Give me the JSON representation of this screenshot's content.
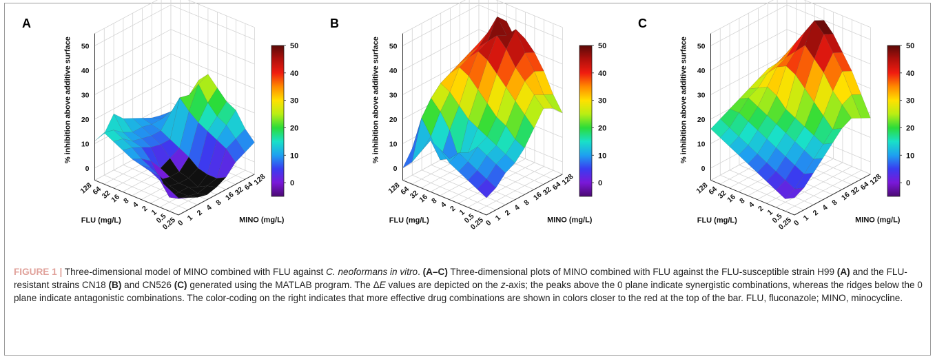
{
  "figure": {
    "panels": [
      {
        "letter": "A"
      },
      {
        "letter": "B"
      },
      {
        "letter": "C"
      }
    ],
    "caption": {
      "label": "FIGURE 1 |",
      "segments": [
        {
          "t": " Three-dimensional model of MINO combined with FLU against ",
          "s": "n"
        },
        {
          "t": "C. neoformans in vitro",
          "s": "i"
        },
        {
          "t": ". ",
          "s": "n"
        },
        {
          "t": "(A–C)",
          "s": "b"
        },
        {
          "t": " Three-dimensional plots of MINO combined with FLU against the FLU-susceptible strain H99 ",
          "s": "n"
        },
        {
          "t": "(A)",
          "s": "b"
        },
        {
          "t": " and the FLU-resistant strains CN18 ",
          "s": "n"
        },
        {
          "t": "(B)",
          "s": "b"
        },
        {
          "t": " and CN526 ",
          "s": "n"
        },
        {
          "t": "(C)",
          "s": "b"
        },
        {
          "t": " generated using the MATLAB program. The Δ",
          "s": "n"
        },
        {
          "t": "E",
          "s": "i"
        },
        {
          "t": " values are depicted on the ",
          "s": "n"
        },
        {
          "t": "z",
          "s": "i"
        },
        {
          "t": "-axis; the peaks above the 0 plane indicate synergistic combinations, whereas the ridges below the 0 plane indicate antagonistic combinations. The color-coding on the right indicates that more effective drug combinations are shown in colors closer to the red at the top of the bar. FLU, fluconazole; MINO, minocycline.",
          "s": "n"
        }
      ]
    }
  },
  "chart_data": [
    {
      "type": "surface3d",
      "panel": "A",
      "x_label": "FLU (mg/L)",
      "y_label": "MINO (mg/L)",
      "z_label": "% inhibition above additive surface",
      "x_ticks": [
        "0.25",
        "0.5",
        "1",
        "2",
        "4",
        "8",
        "16",
        "32",
        "64",
        "128"
      ],
      "y_ticks": [
        "0",
        "1",
        "2",
        "4",
        "8",
        "16",
        "32",
        "64",
        "128"
      ],
      "z_ticks": [
        "0",
        "10",
        "20",
        "30",
        "40",
        "50"
      ],
      "zlim": [
        -5,
        55
      ],
      "colorbar_ticks": [
        "0",
        "10",
        "20",
        "30",
        "40",
        "50"
      ],
      "colorbar_range": [
        -5,
        50
      ],
      "colormap": [
        "#4b0a73",
        "#7a18d8",
        "#3a3cf0",
        "#1ea0f0",
        "#19e0c8",
        "#2bdc3a",
        "#b9ee14",
        "#ffe000",
        "#ff8a00",
        "#f01c10",
        "#b0100c",
        "#5a0a08"
      ],
      "below_zero_color": "#101010",
      "z_matrix": [
        [
          2,
          4,
          6,
          8,
          9,
          10,
          12,
          14,
          16,
          11
        ],
        [
          0,
          -2,
          -3,
          4,
          6,
          8,
          11,
          13,
          15,
          12
        ],
        [
          -2,
          -3,
          -3,
          -2,
          -1,
          5,
          9,
          10,
          12,
          18
        ],
        [
          -3,
          -4,
          -3,
          -3,
          -2,
          0,
          7,
          9,
          10,
          14
        ],
        [
          -2,
          -3,
          -5,
          -3,
          -2,
          2,
          6,
          8,
          10,
          12
        ],
        [
          0,
          -2,
          -2,
          -1,
          2,
          4,
          6,
          8,
          9,
          10
        ],
        [
          4,
          8,
          10,
          12,
          14,
          17,
          21,
          13,
          9,
          8
        ],
        [
          6,
          10,
          14,
          16,
          20,
          26,
          20,
          14,
          10,
          7
        ],
        [
          8,
          12,
          18,
          20,
          24,
          28,
          24,
          15,
          10,
          6
        ]
      ]
    },
    {
      "type": "surface3d",
      "panel": "B",
      "x_label": "FLU (mg/L)",
      "y_label": "MINO (mg/L)",
      "z_label": "% inhibition above additive surface",
      "x_ticks": [
        "0.25",
        "0.5",
        "1",
        "2",
        "4",
        "8",
        "16",
        "32",
        "64",
        "128"
      ],
      "y_ticks": [
        "0",
        "1",
        "2",
        "4",
        "8",
        "16",
        "32",
        "64",
        "128"
      ],
      "z_ticks": [
        "0",
        "10",
        "20",
        "30",
        "40",
        "50"
      ],
      "zlim": [
        -5,
        55
      ],
      "colorbar_ticks": [
        "0",
        "10",
        "20",
        "30",
        "40",
        "50"
      ],
      "colorbar_range": [
        -5,
        50
      ],
      "colormap": [
        "#4b0a73",
        "#7a18d8",
        "#3a3cf0",
        "#1ea0f0",
        "#19e0c8",
        "#2bdc3a",
        "#b9ee14",
        "#ffe000",
        "#ff8a00",
        "#f01c10",
        "#b0100c",
        "#5a0a08"
      ],
      "below_zero_color": "#101010",
      "z_matrix": [
        [
          2,
          4,
          6,
          8,
          10,
          14,
          16,
          10,
          4,
          0
        ],
        [
          4,
          6,
          8,
          10,
          12,
          8,
          6,
          14,
          20,
          6
        ],
        [
          8,
          10,
          12,
          14,
          10,
          6,
          16,
          22,
          26,
          12
        ],
        [
          10,
          12,
          14,
          16,
          18,
          20,
          24,
          28,
          30,
          20
        ],
        [
          14,
          16,
          20,
          22,
          26,
          30,
          34,
          36,
          32,
          24
        ],
        [
          20,
          24,
          28,
          32,
          36,
          40,
          42,
          38,
          34,
          28
        ],
        [
          26,
          30,
          34,
          38,
          44,
          48,
          44,
          40,
          36,
          30
        ],
        [
          24,
          28,
          36,
          42,
          50,
          46,
          52,
          44,
          38,
          32
        ],
        [
          20,
          26,
          34,
          40,
          44,
          42,
          48,
          46,
          40,
          34
        ]
      ]
    },
    {
      "type": "surface3d",
      "panel": "C",
      "x_label": "FLU (mg/L)",
      "y_label": "MINO (mg/L)",
      "z_label": "% inhibition above additive surface",
      "x_ticks": [
        "0.25",
        "0.5",
        "1",
        "2",
        "4",
        "8",
        "16",
        "32",
        "64",
        "128"
      ],
      "y_ticks": [
        "0",
        "1",
        "2",
        "4",
        "8",
        "16",
        "32",
        "64",
        "128"
      ],
      "z_ticks": [
        "0",
        "10",
        "20",
        "30",
        "40",
        "50"
      ],
      "zlim": [
        -5,
        55
      ],
      "colorbar_ticks": [
        "0",
        "10",
        "20",
        "30",
        "40",
        "50"
      ],
      "colorbar_range": [
        -5,
        50
      ],
      "colormap": [
        "#4b0a73",
        "#7a18d8",
        "#3a3cf0",
        "#1ea0f0",
        "#19e0c8",
        "#2bdc3a",
        "#b9ee14",
        "#ffe000",
        "#ff8a00",
        "#f01c10",
        "#b0100c",
        "#5a0a08"
      ],
      "below_zero_color": "#101010",
      "z_matrix": [
        [
          2,
          0,
          2,
          4,
          6,
          8,
          10,
          12,
          14,
          16
        ],
        [
          4,
          2,
          4,
          6,
          8,
          10,
          12,
          14,
          16,
          18
        ],
        [
          8,
          6,
          8,
          10,
          12,
          14,
          16,
          18,
          20,
          20
        ],
        [
          12,
          10,
          12,
          14,
          16,
          18,
          20,
          22,
          24,
          22
        ],
        [
          16,
          14,
          16,
          18,
          20,
          22,
          26,
          28,
          26,
          24
        ],
        [
          20,
          18,
          22,
          26,
          30,
          34,
          36,
          34,
          30,
          26
        ],
        [
          22,
          26,
          30,
          36,
          40,
          44,
          40,
          36,
          32,
          28
        ],
        [
          20,
          28,
          36,
          42,
          48,
          52,
          46,
          40,
          34,
          26
        ],
        [
          18,
          26,
          34,
          40,
          46,
          50,
          44,
          38,
          30,
          24
        ]
      ]
    }
  ]
}
